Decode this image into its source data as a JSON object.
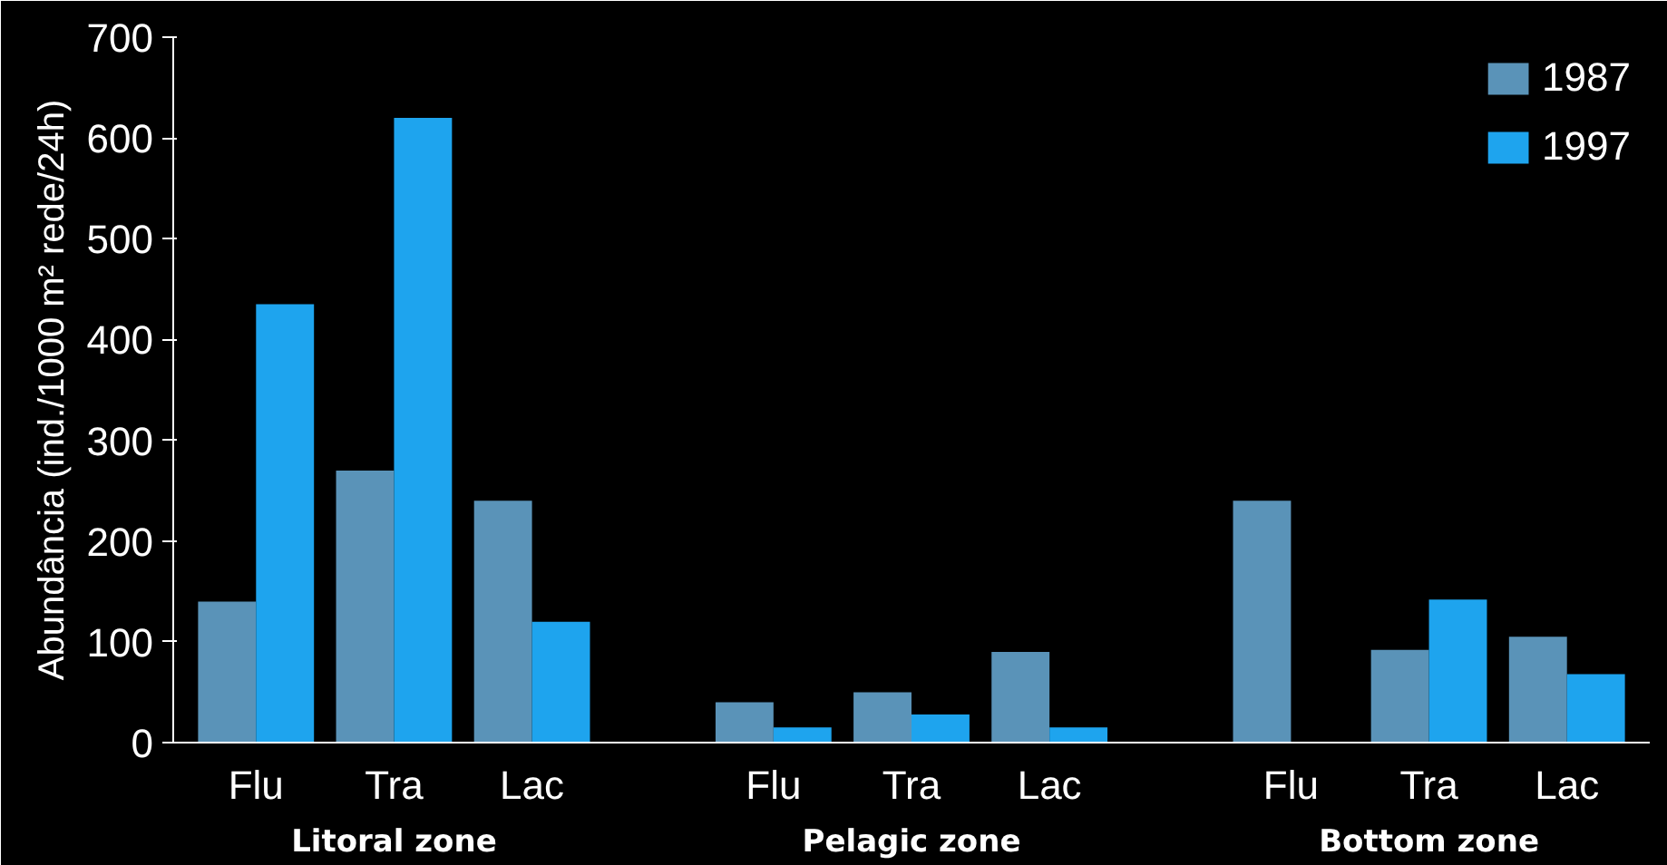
{
  "chart_data": {
    "type": "bar",
    "ylabel": "Abundância (ind./1000 m² rede/24h)",
    "categories": [
      "Flu",
      "Tra",
      "Lac",
      "Flu",
      "Tra",
      "Lac",
      "Flu",
      "Tra",
      "Lac"
    ],
    "annotations": [
      "Litoral zone",
      "Pelagic zone",
      "Bottom zone"
    ],
    "series": [
      {
        "name": "1987",
        "color": "#5a93b8",
        "values": [
          140,
          270,
          240,
          40,
          50,
          90,
          240,
          92,
          105
        ]
      },
      {
        "name": "1997",
        "color": "#1ea4ee",
        "values": [
          435,
          620,
          120,
          15,
          28,
          15,
          0,
          142,
          68
        ]
      }
    ],
    "ylim": [
      0,
      700
    ],
    "yticks": [
      0,
      100,
      200,
      300,
      400,
      500,
      600,
      700
    ],
    "grid": false,
    "legend": "top right"
  }
}
